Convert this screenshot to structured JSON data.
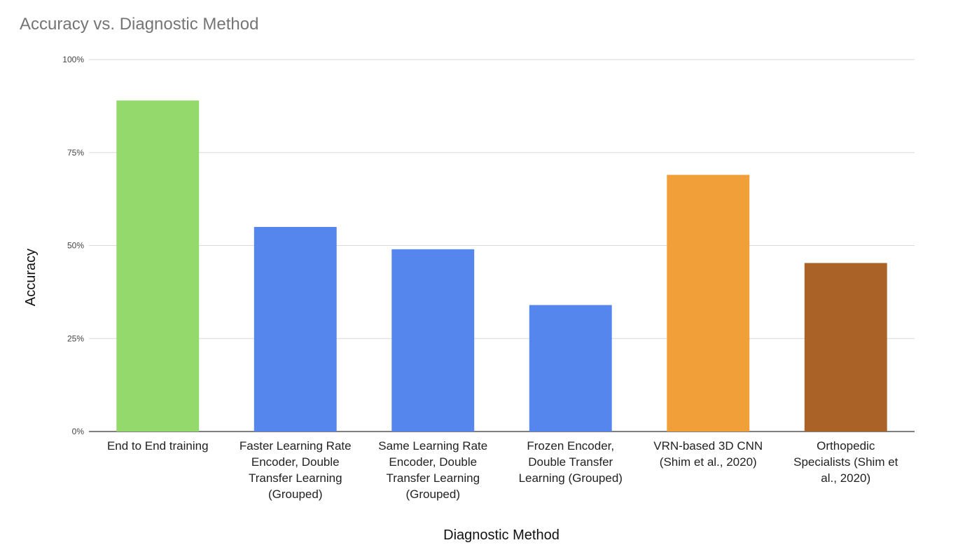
{
  "chart_data": {
    "type": "bar",
    "title": "Accuracy vs. Diagnostic Method",
    "xlabel": "Diagnostic Method",
    "ylabel": "Accuracy",
    "ylim": [
      0,
      100
    ],
    "yticks": [
      "0%",
      "25%",
      "50%",
      "75%",
      "100%"
    ],
    "grid": true,
    "legend": "none",
    "categories": [
      [
        "End to End training"
      ],
      [
        "Faster Learning Rate",
        "Encoder, Double",
        "Transfer Learning",
        "(Grouped)"
      ],
      [
        "Same Learning Rate",
        "Encoder, Double",
        "Transfer Learning",
        "(Grouped)"
      ],
      [
        "Frozen Encoder,",
        "Double Transfer",
        "Learning (Grouped)"
      ],
      [
        "VRN-based 3D CNN",
        "(Shim et al., 2020)"
      ],
      [
        "Orthopedic",
        "Specialists (Shim et",
        "al., 2020)"
      ]
    ],
    "values": [
      89,
      55,
      49,
      34,
      69,
      45.3
    ],
    "colors": [
      "#93d96c",
      "#5586ee",
      "#5586ee",
      "#5586ee",
      "#f19f38",
      "#aa6227"
    ]
  }
}
